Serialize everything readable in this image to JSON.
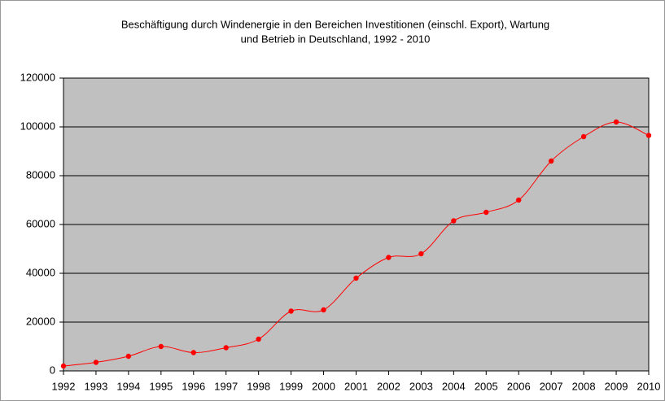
{
  "chart_data": {
    "type": "line",
    "title": [
      "Beschäftigung durch Windenergie in den Bereichen Investitionen (einschl. Export), Wartung",
      "und Betrieb in Deutschland, 1992 - 2010"
    ],
    "categories": [
      "1992",
      "1993",
      "1994",
      "1995",
      "1996",
      "1997",
      "1998",
      "1999",
      "2000",
      "2001",
      "2002",
      "2003",
      "2004",
      "2005",
      "2006",
      "2007",
      "2008",
      "2009",
      "2010"
    ],
    "values": [
      2000,
      3500,
      6000,
      10000,
      7500,
      9500,
      13000,
      24500,
      25000,
      38000,
      46500,
      48000,
      61500,
      65000,
      70000,
      86000,
      96000,
      102000,
      96500
    ],
    "color": "#ff0000",
    "ylim": [
      0,
      120000
    ],
    "yticks": [
      0,
      20000,
      40000,
      60000,
      80000,
      100000,
      120000
    ],
    "grid": true
  }
}
